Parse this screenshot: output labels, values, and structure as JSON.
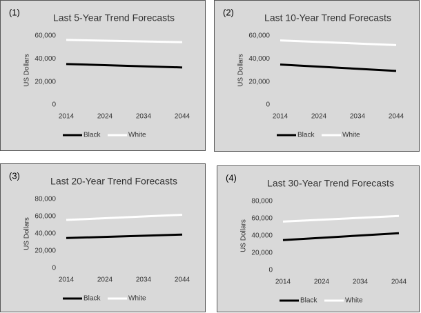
{
  "chart_data": [
    {
      "type": "line",
      "label": "(1)",
      "title": "Last 5-Year Trend Forecasts",
      "ylabel": "US Dollars",
      "x": [
        2014,
        2044
      ],
      "xlim": [
        2014,
        2044
      ],
      "xticks": [
        2014,
        2024,
        2034,
        2044
      ],
      "ylim": [
        0,
        60000
      ],
      "yticks": [
        0,
        {
          "value": 20000,
          "label": "20,000"
        },
        {
          "value": 40000,
          "label": "40,000"
        },
        {
          "value": 60000,
          "label": "60,000"
        }
      ],
      "series": [
        {
          "name": "Black",
          "color": "#000000",
          "values": [
            35500,
            32500
          ]
        },
        {
          "name": "White",
          "color": "#ffffff",
          "values": [
            56500,
            54500
          ]
        }
      ]
    },
    {
      "type": "line",
      "label": "(2)",
      "title": "Last 10-Year Trend Forecasts",
      "ylabel": "US Dollars",
      "x": [
        2014,
        2044
      ],
      "xlim": [
        2014,
        2044
      ],
      "xticks": [
        2014,
        2024,
        2034,
        2044
      ],
      "ylim": [
        0,
        60000
      ],
      "yticks": [
        0,
        {
          "value": 20000,
          "label": "20,000"
        },
        {
          "value": 40000,
          "label": "40,000"
        },
        {
          "value": 60000,
          "label": "60,000"
        }
      ],
      "series": [
        {
          "name": "Black",
          "color": "#000000",
          "values": [
            35000,
            29500
          ]
        },
        {
          "name": "White",
          "color": "#ffffff",
          "values": [
            56000,
            52000
          ]
        }
      ]
    },
    {
      "type": "line",
      "label": "(3)",
      "title": "Last 20-Year Trend Forecasts",
      "ylabel": "US Dollars",
      "x": [
        2014,
        2044
      ],
      "xlim": [
        2014,
        2044
      ],
      "xticks": [
        2014,
        2024,
        2034,
        2044
      ],
      "ylim": [
        0,
        80000
      ],
      "yticks": [
        0,
        {
          "value": 20000,
          "label": "20,000"
        },
        {
          "value": 40000,
          "label": "40,000"
        },
        {
          "value": 60000,
          "label": "60,000"
        },
        {
          "value": 80000,
          "label": "80,000"
        }
      ],
      "series": [
        {
          "name": "Black",
          "color": "#000000",
          "values": [
            35000,
            39000
          ]
        },
        {
          "name": "White",
          "color": "#ffffff",
          "values": [
            56000,
            62000
          ]
        }
      ]
    },
    {
      "type": "line",
      "label": "(4)",
      "title": "Last 30-Year Trend Forecasts",
      "ylabel": "US Dollars",
      "x": [
        2014,
        2044
      ],
      "xlim": [
        2014,
        2044
      ],
      "xticks": [
        2014,
        2024,
        2034,
        2044
      ],
      "ylim": [
        0,
        80000
      ],
      "yticks": [
        0,
        {
          "value": 20000,
          "label": "20,000"
        },
        {
          "value": 40000,
          "label": "40,000"
        },
        {
          "value": 60000,
          "label": "60,000"
        },
        {
          "value": 80000,
          "label": "80,000"
        }
      ],
      "series": [
        {
          "name": "Black",
          "color": "#000000",
          "values": [
            35000,
            43000
          ]
        },
        {
          "name": "White",
          "color": "#ffffff",
          "values": [
            56500,
            63000
          ]
        }
      ]
    }
  ]
}
